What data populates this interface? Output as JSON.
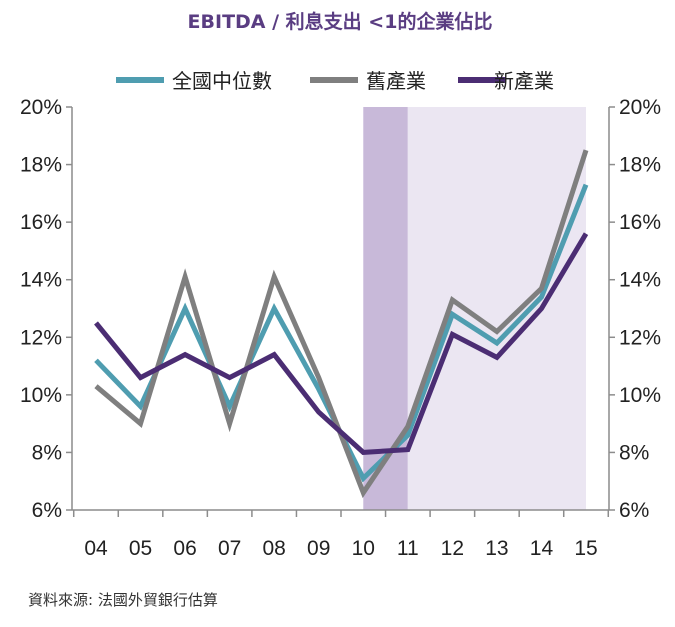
{
  "chart_data": {
    "type": "line",
    "title": "EBITDA / 利息支出 <1的企業佔比",
    "x": [
      "04",
      "05",
      "06",
      "07",
      "08",
      "09",
      "10",
      "11",
      "12",
      "13",
      "14",
      "15"
    ],
    "series": [
      {
        "name": "全國中位數",
        "color": "#4f9db0",
        "values": [
          11.2,
          9.6,
          13.0,
          9.6,
          13.0,
          10.2,
          7.1,
          8.6,
          12.8,
          11.8,
          13.4,
          17.3
        ]
      },
      {
        "name": "舊產業",
        "color": "#7f7f7f",
        "values": [
          10.3,
          9.0,
          14.1,
          9.0,
          14.1,
          10.6,
          6.6,
          8.9,
          13.3,
          12.2,
          13.7,
          18.5
        ]
      },
      {
        "name": "新產業",
        "color": "#4b2d73",
        "values": [
          12.5,
          10.6,
          11.4,
          10.6,
          11.4,
          9.4,
          8.0,
          8.1,
          12.1,
          11.3,
          13.0,
          15.6
        ]
      }
    ],
    "ylim": [
      6,
      20
    ],
    "yticks": [
      "6%",
      "8%",
      "10%",
      "12%",
      "14%",
      "16%",
      "18%",
      "20%"
    ],
    "grid": false,
    "legend_position": "top",
    "shaded_regions": [
      {
        "from": "10",
        "to": "11",
        "color": "#c8b9d9"
      },
      {
        "from": "11",
        "to": "15",
        "color": "#ebe6f2"
      }
    ]
  },
  "source": "資料來源: 法國外貿銀行估算"
}
